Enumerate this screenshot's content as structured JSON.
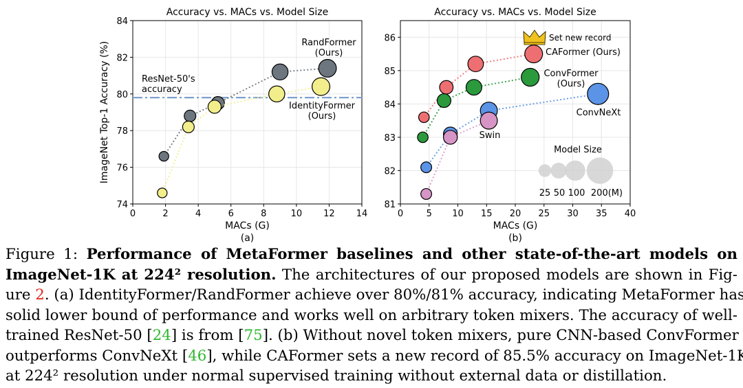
{
  "colors": {
    "identity": "#f2ee8c",
    "rand": "#6d767e",
    "caformer": "#ee6f72",
    "convformer": "#2a9a3c",
    "convnext": "#5b93e6",
    "swin": "#d795c6",
    "baseline": "#7e9fcf",
    "crown": "#f0c21f",
    "ref_red": "#e3261c",
    "ref_green": "#2fb52f"
  },
  "chart_data": [
    {
      "type": "scatter",
      "title": "Accuracy vs. MACs vs. Model Size",
      "xlabel": "MACs (G)",
      "ylabel": "ImageNet Top-1 Accuracy (%)",
      "sublabel": "(a)",
      "xlim": [
        0,
        14
      ],
      "ylim": [
        74,
        84
      ],
      "xticks": [
        0,
        2,
        4,
        6,
        8,
        10,
        12,
        14
      ],
      "yticks": [
        74,
        76,
        78,
        80,
        82,
        84
      ],
      "xtick_labels": [
        "0",
        "2",
        "4",
        "6",
        "8",
        "10",
        "12",
        "14"
      ],
      "ytick_labels": [
        "74",
        "76",
        "78",
        "80",
        "82",
        "84"
      ],
      "reference_line": {
        "y": 79.8,
        "label_lines": [
          "ResNet-50's",
          "accuracy"
        ]
      },
      "series": [
        {
          "name": "RandFormer",
          "color_key": "rand",
          "label_lines": [
            "RandFormer",
            "(Ours)"
          ],
          "points": [
            {
              "x": 1.9,
              "y": 76.6,
              "size": 12
            },
            {
              "x": 3.5,
              "y": 78.8,
              "size": 22
            },
            {
              "x": 5.2,
              "y": 79.5,
              "size": 32
            },
            {
              "x": 9.0,
              "y": 81.2,
              "size": 57
            },
            {
              "x": 11.9,
              "y": 81.4,
              "size": 75
            }
          ]
        },
        {
          "name": "IdentityFormer",
          "color_key": "identity",
          "label_lines": [
            "IdentityFormer",
            "(Ours)"
          ],
          "points": [
            {
              "x": 1.8,
              "y": 74.6,
              "size": 12
            },
            {
              "x": 3.4,
              "y": 78.2,
              "size": 22
            },
            {
              "x": 5.0,
              "y": 79.3,
              "size": 32
            },
            {
              "x": 8.8,
              "y": 80.0,
              "size": 57
            },
            {
              "x": 11.5,
              "y": 80.4,
              "size": 75
            }
          ]
        }
      ]
    },
    {
      "type": "scatter",
      "title": "Accuracy vs. MACs vs. Model Size",
      "xlabel": "MACs (G)",
      "ylabel": "",
      "sublabel": "(b)",
      "xlim": [
        0,
        40
      ],
      "ylim": [
        81,
        86.5
      ],
      "xticks": [
        0,
        5,
        10,
        15,
        20,
        25,
        30,
        35,
        40
      ],
      "yticks": [
        81,
        82,
        83,
        84,
        85,
        86
      ],
      "xtick_labels": [
        "0",
        "5",
        "10",
        "15",
        "20",
        "25",
        "30",
        "35",
        "40"
      ],
      "ytick_labels": [
        "81",
        "82",
        "83",
        "84",
        "85",
        "86"
      ],
      "annotation": "Set new record",
      "series": [
        {
          "name": "CAFormer",
          "color_key": "caformer",
          "label_lines": [
            "CAFormer (Ours)"
          ],
          "points": [
            {
              "x": 4.1,
              "y": 83.6,
              "size": 12
            },
            {
              "x": 8.0,
              "y": 84.5,
              "size": 26
            },
            {
              "x": 13.1,
              "y": 85.2,
              "size": 39
            },
            {
              "x": 23.2,
              "y": 85.5,
              "size": 56
            }
          ]
        },
        {
          "name": "ConvFormer",
          "color_key": "convformer",
          "label_lines": [
            "ConvFormer",
            "(Ours)"
          ],
          "points": [
            {
              "x": 3.9,
              "y": 83.0,
              "size": 12
            },
            {
              "x": 7.6,
              "y": 84.1,
              "size": 27
            },
            {
              "x": 12.8,
              "y": 84.5,
              "size": 40
            },
            {
              "x": 22.6,
              "y": 84.8,
              "size": 57
            }
          ]
        },
        {
          "name": "ConvNeXt",
          "color_key": "convnext",
          "label_lines": [
            "ConvNeXt"
          ],
          "points": [
            {
              "x": 4.5,
              "y": 82.1,
              "size": 13
            },
            {
              "x": 8.7,
              "y": 83.1,
              "size": 28
            },
            {
              "x": 15.4,
              "y": 83.8,
              "size": 50
            },
            {
              "x": 34.4,
              "y": 84.3,
              "size": 89
            }
          ]
        },
        {
          "name": "Swin",
          "color_key": "swin",
          "label_lines": [
            "Swin"
          ],
          "points": [
            {
              "x": 4.5,
              "y": 81.3,
              "size": 13
            },
            {
              "x": 8.7,
              "y": 83.0,
              "size": 28
            },
            {
              "x": 15.4,
              "y": 83.5,
              "size": 50
            }
          ]
        }
      ],
      "size_legend": {
        "title": "Model Size",
        "entries": [
          {
            "label": "25",
            "size": 25
          },
          {
            "label": "50",
            "size": 50
          },
          {
            "label": "100",
            "size": 100
          },
          {
            "label": "200(M)",
            "size": 200
          }
        ]
      }
    }
  ],
  "caption": {
    "lines": [
      [
        {
          "text": "Figure 1:  "
        },
        {
          "text": "Performance of MetaFormer baselines and other state-of-the-art models on",
          "bold": true
        }
      ],
      [
        {
          "text": "ImageNet-1K at 224² resolution.",
          "bold": true
        },
        {
          "text": " The architectures of our proposed models are shown in Fig-"
        }
      ],
      [
        {
          "text": "ure "
        },
        {
          "text": "2",
          "ref": "red"
        },
        {
          "text": ". (a) IdentityFormer/RandFormer achieve over 80%/81% accuracy, indicating MetaFormer has"
        }
      ],
      [
        {
          "text": "solid lower bound of performance and works well on arbitrary token mixers. The accuracy of well-"
        }
      ],
      [
        {
          "text": "trained ResNet-50 ["
        },
        {
          "text": "24",
          "ref": "green"
        },
        {
          "text": "] is from ["
        },
        {
          "text": "75",
          "ref": "green"
        },
        {
          "text": "]. (b) Without novel token mixers, pure CNN-based ConvFormer"
        }
      ],
      [
        {
          "text": "outperforms ConvNeXt ["
        },
        {
          "text": "46",
          "ref": "green"
        },
        {
          "text": "], while CAFormer sets a new record of 85.5% accuracy on ImageNet-1K"
        }
      ],
      [
        {
          "text": "at 224² resolution under normal supervised training without external data or distillation."
        }
      ]
    ]
  }
}
